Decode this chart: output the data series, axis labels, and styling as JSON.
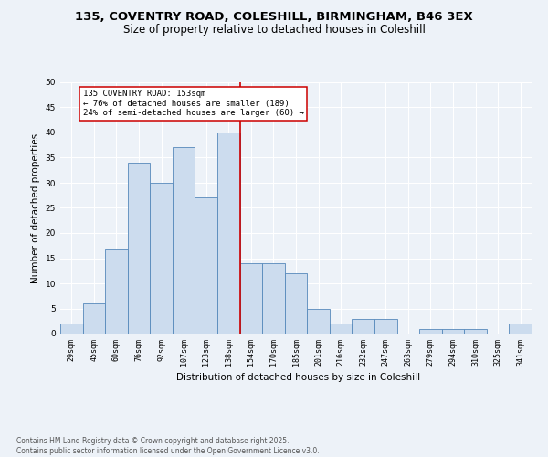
{
  "title1": "135, COVENTRY ROAD, COLESHILL, BIRMINGHAM, B46 3EX",
  "title2": "Size of property relative to detached houses in Coleshill",
  "xlabel": "Distribution of detached houses by size in Coleshill",
  "ylabel": "Number of detached properties",
  "bar_labels": [
    "29sqm",
    "45sqm",
    "60sqm",
    "76sqm",
    "92sqm",
    "107sqm",
    "123sqm",
    "138sqm",
    "154sqm",
    "170sqm",
    "185sqm",
    "201sqm",
    "216sqm",
    "232sqm",
    "247sqm",
    "263sqm",
    "279sqm",
    "294sqm",
    "310sqm",
    "325sqm",
    "341sqm"
  ],
  "bar_values": [
    2,
    6,
    17,
    34,
    30,
    37,
    27,
    40,
    14,
    14,
    12,
    5,
    2,
    3,
    3,
    0,
    1,
    1,
    1,
    0,
    2
  ],
  "bar_color": "#ccdcee",
  "bar_edgecolor": "#5588bb",
  "bar_linewidth": 0.6,
  "vline_x": 7.5,
  "vline_color": "#cc0000",
  "annotation_text": "135 COVENTRY ROAD: 153sqm\n← 76% of detached houses are smaller (189)\n24% of semi-detached houses are larger (60) →",
  "annotation_box_edgecolor": "#cc0000",
  "annotation_box_facecolor": "#ffffff",
  "ylim": [
    0,
    50
  ],
  "yticks": [
    0,
    5,
    10,
    15,
    20,
    25,
    30,
    35,
    40,
    45,
    50
  ],
  "background_color": "#edf2f8",
  "grid_color": "#ffffff",
  "footnote": "Contains HM Land Registry data © Crown copyright and database right 2025.\nContains public sector information licensed under the Open Government Licence v3.0.",
  "title_fontsize": 9.5,
  "subtitle_fontsize": 8.5,
  "axis_label_fontsize": 7.5,
  "tick_fontsize": 6.0,
  "footnote_fontsize": 5.5,
  "annotation_fontsize": 6.5,
  "ylabel_fontsize": 7.5
}
